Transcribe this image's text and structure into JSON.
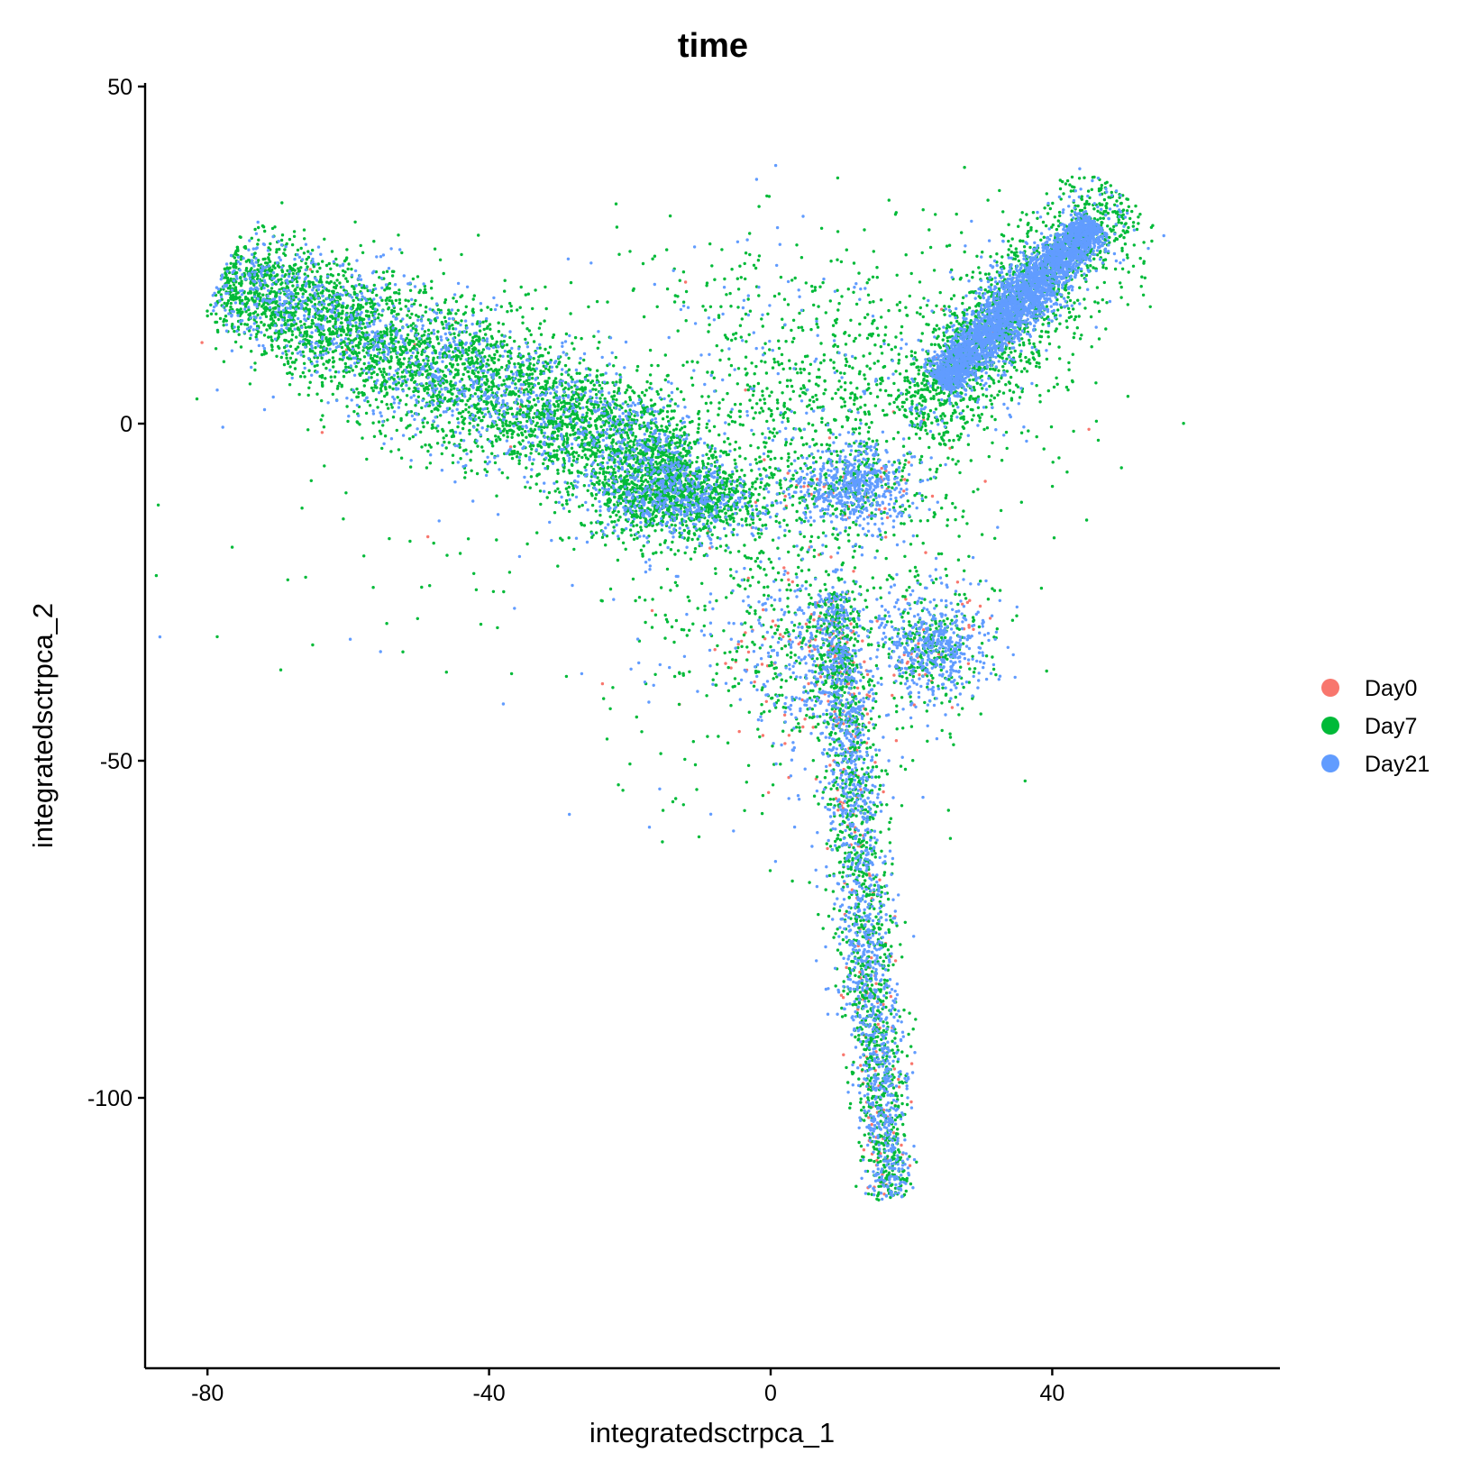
{
  "chart_data": {
    "type": "scatter",
    "title": "time",
    "xlabel": "integratedsctrpca_1",
    "ylabel": "integratedsctrpca_2",
    "xlim": [
      -88,
      72
    ],
    "ylim": [
      -139,
      51
    ],
    "xticks": [
      -80,
      -40,
      0,
      40
    ],
    "xtick_labels": [
      "-80",
      "-40",
      "0",
      "40"
    ],
    "yticks": [
      -100,
      -50,
      0,
      50
    ],
    "ytick_labels": [
      "-100",
      "-50",
      "0",
      "50"
    ],
    "grid": false,
    "legend_position": "right",
    "series": [
      {
        "name": "Day0",
        "color": "#F8766D"
      },
      {
        "name": "Day7",
        "color": "#00BA38"
      },
      {
        "name": "Day21",
        "color": "#619CFF"
      }
    ],
    "structures": [
      {
        "kind": "arm",
        "from": [
          -78,
          22
        ],
        "to": [
          -12,
          -7
        ],
        "width": 4.5,
        "n": [
          12,
          3800,
          1400
        ]
      },
      {
        "kind": "blob",
        "center": [
          -13,
          -11
        ],
        "spread": [
          6,
          3
        ],
        "n": [
          10,
          900,
          450
        ]
      },
      {
        "kind": "arm",
        "from": [
          24,
          6
        ],
        "to": [
          46,
          30
        ],
        "width": 1.6,
        "n": [
          8,
          700,
          3000
        ]
      },
      {
        "kind": "arm",
        "from": [
          20,
          0
        ],
        "to": [
          50,
          34
        ],
        "width": 4,
        "n": [
          0,
          1100,
          250
        ]
      },
      {
        "kind": "blob",
        "center": [
          12,
          -9
        ],
        "spread": [
          4,
          3
        ],
        "n": [
          35,
          120,
          520
        ]
      },
      {
        "kind": "blob",
        "center": [
          23,
          -33
        ],
        "spread": [
          4,
          4
        ],
        "n": [
          25,
          230,
          480
        ]
      },
      {
        "kind": "arm",
        "from": [
          9,
          -25
        ],
        "to": [
          17,
          -115
        ],
        "width": 1.8,
        "n": [
          180,
          1300,
          1300
        ]
      },
      {
        "kind": "blob",
        "center": [
          5,
          -35
        ],
        "spread": [
          5,
          7
        ],
        "n": [
          80,
          130,
          220
        ]
      },
      {
        "kind": "cloud",
        "center": [
          8,
          5
        ],
        "spread": [
          15,
          12
        ],
        "n": [
          10,
          950,
          180
        ]
      },
      {
        "kind": "cloud",
        "center": [
          3,
          -25
        ],
        "spread": [
          13,
          16
        ],
        "n": [
          40,
          520,
          180
        ]
      },
      {
        "kind": "cloud",
        "center": [
          -35,
          -20
        ],
        "spread": [
          30,
          12
        ],
        "n": [
          2,
          80,
          20
        ]
      }
    ]
  },
  "legend": {
    "items": [
      {
        "label": "Day0",
        "color": "#F8766D"
      },
      {
        "label": "Day7",
        "color": "#00BA38"
      },
      {
        "label": "Day21",
        "color": "#619CFF"
      }
    ]
  }
}
